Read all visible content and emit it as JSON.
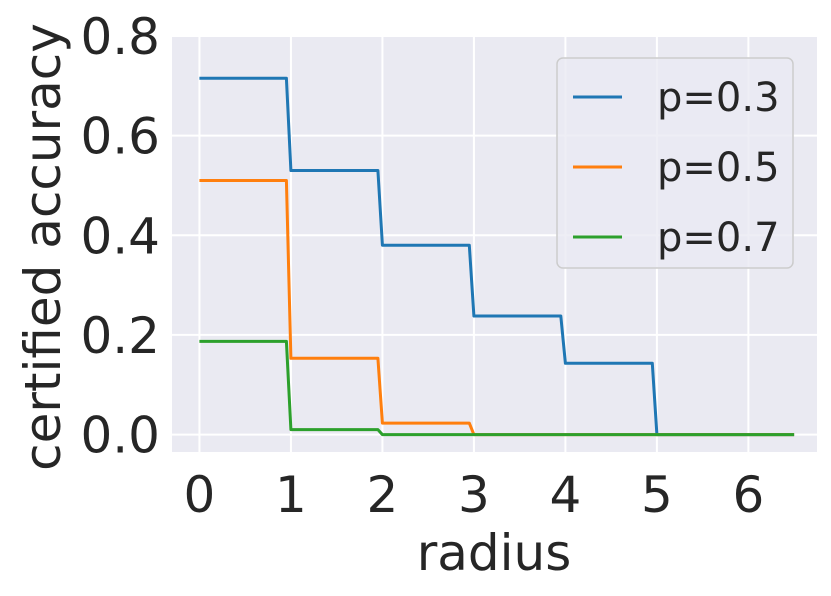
{
  "chart_data": {
    "type": "line",
    "xlabel": "radius",
    "ylabel": "certified accuracy",
    "xlim": [
      -0.3,
      6.75
    ],
    "ylim": [
      -0.035,
      0.8
    ],
    "x_ticks": [
      "0",
      "1",
      "2",
      "3",
      "4",
      "5",
      "6"
    ],
    "y_ticks": [
      "0.0",
      "0.2",
      "0.4",
      "0.6",
      "0.8"
    ],
    "grid": true,
    "background": "#eaeaf2",
    "legend": "top-right",
    "series": [
      {
        "name": "p=0.3",
        "color": "#1f77b4",
        "x": [
          0,
          0.95,
          1.0,
          1.95,
          2.0,
          2.95,
          3.0,
          3.95,
          4.0,
          4.95,
          5.0,
          6.5
        ],
        "y": [
          0.715,
          0.715,
          0.53,
          0.53,
          0.38,
          0.38,
          0.238,
          0.238,
          0.143,
          0.143,
          0.0,
          0.0
        ]
      },
      {
        "name": "p=0.5",
        "color": "#ff7f0e",
        "x": [
          0,
          0.95,
          1.0,
          1.95,
          2.0,
          2.95,
          3.0,
          6.5
        ],
        "y": [
          0.51,
          0.51,
          0.153,
          0.153,
          0.023,
          0.023,
          0.0,
          0.0
        ]
      },
      {
        "name": "p=0.7",
        "color": "#2ca02c",
        "x": [
          0,
          0.95,
          1.0,
          1.95,
          2.0,
          6.5
        ],
        "y": [
          0.187,
          0.187,
          0.01,
          0.01,
          0.0,
          0.0
        ]
      }
    ]
  }
}
